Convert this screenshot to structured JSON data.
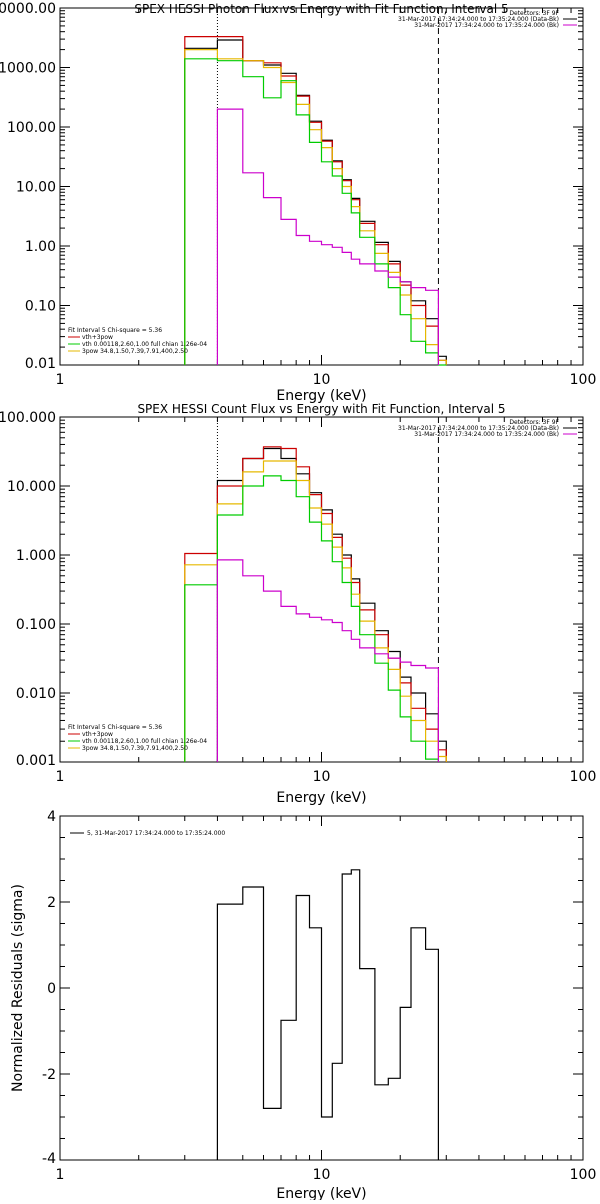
{
  "chart_data": [
    {
      "type": "line",
      "title": "SPEX HESSI Photon Flux vs Energy with Fit Function, Interval 5",
      "xlabel": "Energy (keV)",
      "ylabel": "",
      "xscale": "log",
      "yscale": "log",
      "xlim": [
        1,
        100
      ],
      "ylim": [
        0.01,
        10000
      ],
      "xticks": [
        1,
        10,
        100
      ],
      "xtick_labels": [
        "1",
        "10",
        "100"
      ],
      "yticks": [
        0.01,
        0.1,
        1,
        10,
        100,
        1000,
        10000
      ],
      "ytick_labels": [
        "0.01",
        "0.10",
        "1.00",
        "10.00",
        "100.00",
        "1000.00",
        "10000.00"
      ],
      "vlines": [
        {
          "x": 4.0,
          "style": "dotted"
        },
        {
          "x": 28.0,
          "style": "dashed"
        }
      ],
      "legend_top_right": [
        "Detectors: 3F 9F",
        "31-Mar-2017 17:34:24.000 to 17:35:24.000 (Data-Bk)",
        "31-Mar-2017 17:34:24.000 to 17:35:24.000 (Bk)"
      ],
      "legend_top_right_colors": [
        "#000000",
        "#000000",
        "#cc00cc"
      ],
      "legend_bottom_left": [
        "Fit Interval 5   Chi-square = 5.36",
        "vth+3pow",
        "vth 0.00118,2.60,1.00  full chian 1.26e-04",
        "3pow 34.8,1.50,7.39,7.91,400,2.50"
      ],
      "legend_bottom_left_colors": [
        "#000000",
        "#cc0000",
        "#00cc00",
        "#e6b800"
      ],
      "edges": [
        3,
        4,
        5,
        6,
        7,
        8,
        9,
        10,
        11,
        12,
        13,
        14,
        16,
        18,
        20,
        22,
        25,
        28,
        30
      ],
      "series": [
        {
          "color": "#000000",
          "values": [
            2100,
            2900,
            1300,
            1100,
            800,
            340,
            125,
            60,
            27,
            13,
            6.3,
            2.6,
            1.15,
            0.55,
            0.25,
            0.12,
            0.06,
            0.014
          ]
        },
        {
          "color": "#cc0000",
          "values": [
            3300,
            3300,
            1300,
            1200,
            720,
            330,
            120,
            58,
            26,
            12.5,
            6.0,
            2.4,
            1.05,
            0.5,
            0.22,
            0.1,
            0.045,
            0.012
          ]
        },
        {
          "color": "#e6b800",
          "values": [
            2000,
            1400,
            1300,
            1000,
            560,
            240,
            90,
            45,
            20,
            10,
            4.6,
            1.8,
            0.75,
            0.36,
            0.15,
            0.06,
            0.022,
            0.012
          ]
        },
        {
          "color": "#00cc00",
          "values": [
            1400,
            1300,
            700,
            310,
            600,
            160,
            55,
            26,
            15,
            7.7,
            3.6,
            1.4,
            0.5,
            0.2,
            0.07,
            0.025,
            0.016,
            0.009
          ]
        },
        {
          "color": "#cc00cc",
          "values": [
            null,
            200,
            17,
            6.5,
            2.8,
            1.5,
            1.2,
            1.05,
            0.95,
            0.78,
            0.6,
            0.5,
            0.38,
            0.3,
            0.25,
            0.2,
            0.18,
            null
          ]
        }
      ]
    },
    {
      "type": "line",
      "title": "SPEX HESSI Count Flux vs Energy with Fit Function, Interval 5",
      "xlabel": "Energy (keV)",
      "ylabel": "",
      "xscale": "log",
      "yscale": "log",
      "xlim": [
        1,
        100
      ],
      "ylim": [
        0.001,
        100
      ],
      "xticks": [
        1,
        10,
        100
      ],
      "xtick_labels": [
        "1",
        "10",
        "100"
      ],
      "yticks": [
        0.001,
        0.01,
        0.1,
        1,
        10,
        100
      ],
      "ytick_labels": [
        "0.001",
        "0.010",
        "0.100",
        "1.000",
        "10.000",
        "100.000"
      ],
      "vlines": [
        {
          "x": 4.0,
          "style": "dotted"
        },
        {
          "x": 28.0,
          "style": "dashed"
        }
      ],
      "legend_top_right": [
        "Detectors: 3F 9F",
        "31-Mar-2017 17:34:24.000 to 17:35:24.000 (Data-Bk)",
        "31-Mar-2017 17:34:24.000 to 17:35:24.000 (Bk)"
      ],
      "legend_top_right_colors": [
        "#000000",
        "#000000",
        "#cc00cc"
      ],
      "legend_bottom_left": [
        "Fit Interval 5   Chi-square = 5.36",
        "vth+3pow",
        "vth 0.00118,2.60,1.00  full chian 1.26e-04",
        "3pow 34.8,1.50,7.39,7.91,400,2.50"
      ],
      "legend_bottom_left_colors": [
        "#000000",
        "#cc0000",
        "#00cc00",
        "#e6b800"
      ],
      "edges": [
        3,
        4,
        5,
        6,
        7,
        8,
        9,
        10,
        11,
        12,
        13,
        14,
        16,
        18,
        20,
        22,
        25,
        28,
        30
      ],
      "series": [
        {
          "color": "#000000",
          "values": [
            null,
            12,
            25,
            35,
            25,
            15,
            8.0,
            4.5,
            2.0,
            1.0,
            0.45,
            0.2,
            0.08,
            0.04,
            0.017,
            0.01,
            0.005,
            0.002
          ]
        },
        {
          "color": "#cc0000",
          "values": [
            1.05,
            10,
            25,
            37,
            35,
            19,
            7.5,
            4.0,
            1.8,
            0.9,
            0.4,
            0.16,
            0.07,
            0.032,
            0.014,
            0.006,
            0.003,
            0.0015
          ]
        },
        {
          "color": "#e6b800",
          "values": [
            0.72,
            5.5,
            16,
            23,
            23,
            12,
            4.8,
            2.8,
            1.3,
            0.65,
            0.27,
            0.11,
            0.045,
            0.022,
            0.009,
            0.004,
            0.002,
            0.0012
          ]
        },
        {
          "color": "#00cc00",
          "values": [
            0.37,
            3.8,
            10,
            14,
            12,
            7.0,
            3.0,
            1.6,
            0.8,
            0.4,
            0.18,
            0.07,
            0.027,
            0.011,
            0.0045,
            0.002,
            0.0011,
            null
          ]
        },
        {
          "color": "#cc00cc",
          "values": [
            null,
            0.85,
            0.5,
            0.3,
            0.18,
            0.14,
            0.125,
            0.115,
            0.105,
            0.08,
            0.06,
            0.045,
            0.037,
            0.032,
            0.028,
            0.025,
            0.023,
            null
          ]
        }
      ]
    },
    {
      "type": "line",
      "title": "",
      "xlabel": "Energy (keV)",
      "ylabel": "Normalized Residuals (sigma)",
      "xscale": "log",
      "yscale": "linear",
      "xlim": [
        1,
        100
      ],
      "ylim": [
        -4,
        4
      ],
      "xticks": [
        1,
        10,
        100
      ],
      "xtick_labels": [
        "1",
        "10",
        "100"
      ],
      "yticks": [
        -4,
        -2,
        0,
        2,
        4
      ],
      "ytick_labels": [
        "-4",
        "-2",
        "0",
        "2",
        "4"
      ],
      "legend_top_left": [
        "5, 31-Mar-2017 17:34:24.000 to 17:35:24.000"
      ],
      "edges": [
        4,
        5,
        6,
        7,
        8,
        9,
        10,
        11,
        12,
        13,
        14,
        16,
        18,
        20,
        22,
        25,
        28
      ],
      "series": [
        {
          "color": "#000000",
          "values": [
            1.95,
            2.35,
            -2.8,
            -0.75,
            2.15,
            1.4,
            -3.0,
            -1.75,
            2.65,
            2.75,
            0.45,
            -2.25,
            -2.1,
            -0.45,
            1.4,
            0.9
          ]
        }
      ]
    }
  ]
}
